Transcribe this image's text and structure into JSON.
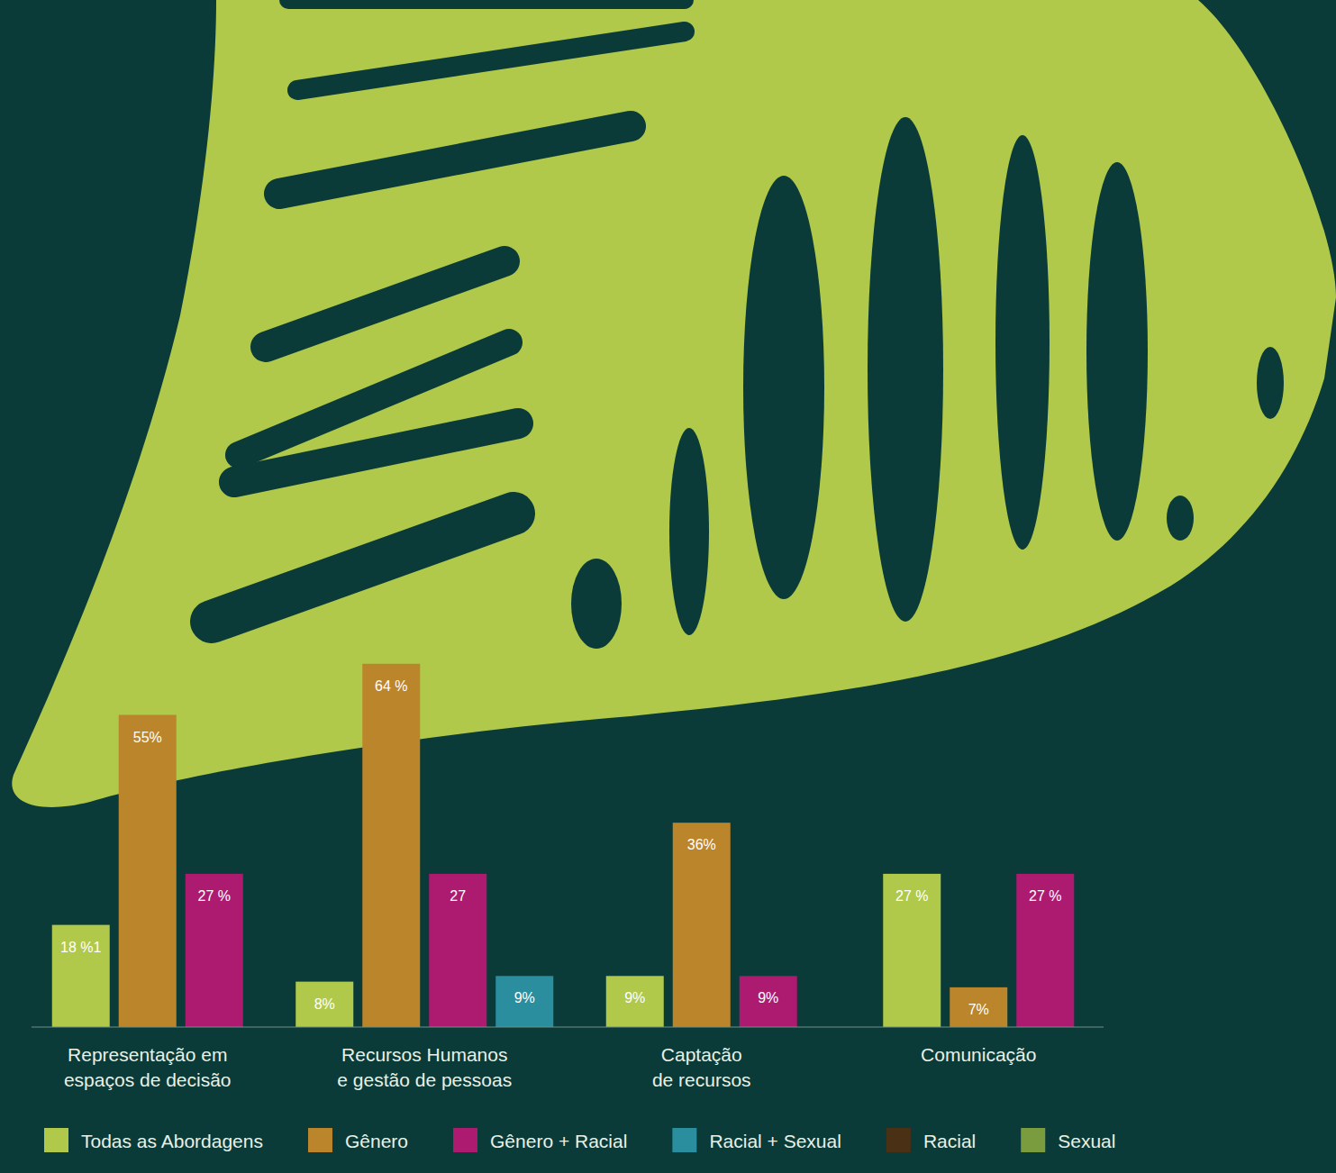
{
  "chart_data": {
    "type": "bar",
    "categories": [
      "Representação em\nespaços de decisão",
      "Recursos Humanos\ne gestão de pessoas",
      "Captação\nde recursos",
      "Comunicação"
    ],
    "series": [
      {
        "name": "Todas as Abordagens",
        "color": "#b0c94a",
        "values": [
          18,
          8,
          9,
          27
        ],
        "value_labels": [
          "18 %1",
          "8%",
          "9%",
          "27 %"
        ]
      },
      {
        "name": "Gênero",
        "color": "#bb852b",
        "values": [
          55,
          64,
          36,
          7
        ],
        "value_labels": [
          "55%",
          "64 %",
          "36%",
          "7%"
        ]
      },
      {
        "name": "Gênero + Racial",
        "color": "#ac1b70",
        "values": [
          27,
          27,
          9,
          27
        ],
        "value_labels": [
          "27 %",
          "27",
          "9%",
          "27 %"
        ]
      },
      {
        "name": "Racial + Sexual",
        "color": "#2a8e9e",
        "values": [
          null,
          9,
          null,
          null
        ],
        "value_labels": [
          null,
          "9%",
          null,
          null
        ]
      },
      {
        "name": "Racial",
        "color": "#4a3014",
        "values": [
          null,
          null,
          null,
          null
        ],
        "value_labels": [
          null,
          null,
          null,
          null
        ]
      },
      {
        "name": "Sexual",
        "color": "#7b9c3e",
        "values": [
          null,
          null,
          null,
          null
        ],
        "value_labels": [
          null,
          null,
          null,
          null
        ]
      }
    ],
    "ylim": [
      0,
      70
    ],
    "data_labels": true,
    "tick_labels": "x",
    "legend": "bottom"
  }
}
